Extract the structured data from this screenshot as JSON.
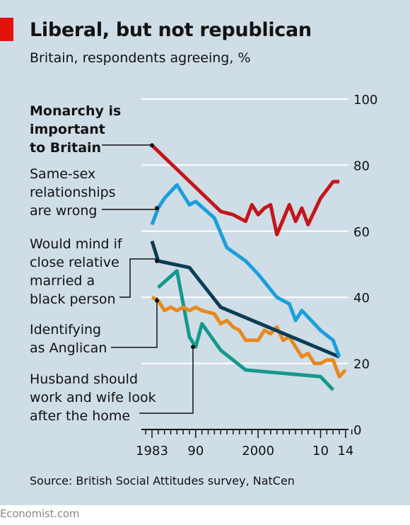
{
  "header": {
    "title": "Liberal, but not republican",
    "subtitle": "Britain, respondents agreeing, %"
  },
  "footer": {
    "source": "Source: British Social Attitudes survey, NatCen",
    "brand": "Economist.com"
  },
  "colors": {
    "background": "#cfdde6",
    "monarchy": "#c3161c",
    "same_sex": "#1a9fdb",
    "mixed_marriage": "#0b3d55",
    "anglican": "#e8891d",
    "gender_roles": "#13998e",
    "gridline": "#ffffff",
    "accent_tag": "#e3120b"
  },
  "chart_data": {
    "type": "line",
    "title": "Liberal, but not republican",
    "subtitle": "Britain, respondents agreeing, %",
    "xlabel": "",
    "ylabel": "",
    "xlim": [
      1979,
      2016
    ],
    "ylim": [
      0,
      100
    ],
    "yticks": [
      0,
      20,
      40,
      60,
      80,
      100
    ],
    "xtick_labels": [
      {
        "x": 1983,
        "label": "1983"
      },
      {
        "x": 1990,
        "label": "90"
      },
      {
        "x": 2000,
        "label": "2000"
      },
      {
        "x": 2010,
        "label": "10"
      },
      {
        "x": 2014,
        "label": "14"
      }
    ],
    "grid": true,
    "y_axis_side": "right",
    "series": [
      {
        "key": "monarchy",
        "name": "Monarchy is important to Britain",
        "label_lines": [
          "Monarchy is",
          "important",
          "to Britain"
        ],
        "bold": true,
        "points": [
          [
            1983,
            86
          ],
          [
            1994,
            66
          ],
          [
            1996,
            65
          ],
          [
            1998,
            63
          ],
          [
            1999,
            68
          ],
          [
            2000,
            65
          ],
          [
            2001,
            67
          ],
          [
            2002,
            68
          ],
          [
            2003,
            59
          ],
          [
            2005,
            68
          ],
          [
            2006,
            63
          ],
          [
            2007,
            67
          ],
          [
            2008,
            62
          ],
          [
            2010,
            70
          ],
          [
            2012,
            75
          ],
          [
            2013,
            75
          ]
        ]
      },
      {
        "key": "same_sex",
        "name": "Same-sex relationships are wrong",
        "label_lines": [
          "Same-sex",
          "relationships",
          "are wrong"
        ],
        "points": [
          [
            1983,
            62
          ],
          [
            1984,
            67
          ],
          [
            1985,
            70
          ],
          [
            1987,
            74
          ],
          [
            1989,
            68
          ],
          [
            1990,
            69
          ],
          [
            1993,
            64
          ],
          [
            1995,
            55
          ],
          [
            1998,
            51
          ],
          [
            2000,
            47
          ],
          [
            2003,
            40
          ],
          [
            2005,
            38
          ],
          [
            2006,
            33
          ],
          [
            2007,
            36
          ],
          [
            2010,
            30
          ],
          [
            2012,
            27
          ],
          [
            2013,
            22
          ]
        ]
      },
      {
        "key": "mixed_marriage",
        "name": "Would mind if close relative married a black person",
        "label_lines": [
          "Would mind if",
          "close relative",
          "married a",
          "black person"
        ],
        "points": [
          [
            1983,
            57
          ],
          [
            1984,
            51
          ],
          [
            1989,
            49
          ],
          [
            1994,
            37
          ],
          [
            2013,
            22
          ]
        ]
      },
      {
        "key": "anglican",
        "name": "Identifying as Anglican",
        "label_lines": [
          "Identifying",
          "as Anglican"
        ],
        "points": [
          [
            1983,
            40
          ],
          [
            1984,
            39
          ],
          [
            1985,
            36
          ],
          [
            1986,
            37
          ],
          [
            1987,
            36
          ],
          [
            1988,
            37
          ],
          [
            1989,
            36
          ],
          [
            1990,
            37
          ],
          [
            1991,
            36
          ],
          [
            1993,
            35
          ],
          [
            1994,
            32
          ],
          [
            1995,
            33
          ],
          [
            1996,
            31
          ],
          [
            1997,
            30
          ],
          [
            1998,
            27
          ],
          [
            2000,
            27
          ],
          [
            2001,
            30
          ],
          [
            2002,
            29
          ],
          [
            2003,
            31
          ],
          [
            2004,
            27
          ],
          [
            2005,
            28
          ],
          [
            2006,
            25
          ],
          [
            2007,
            22
          ],
          [
            2008,
            23
          ],
          [
            2009,
            20
          ],
          [
            2010,
            20
          ],
          [
            2011,
            21
          ],
          [
            2012,
            21
          ],
          [
            2013,
            16
          ],
          [
            2014,
            18
          ]
        ]
      },
      {
        "key": "gender_roles",
        "name": "Husband should work and wife look after the home",
        "label_lines": [
          "Husband should",
          "work and wife look",
          "after the home"
        ],
        "points": [
          [
            1984,
            43
          ],
          [
            1987,
            48
          ],
          [
            1989,
            28
          ],
          [
            1990,
            25
          ],
          [
            1991,
            32
          ],
          [
            1994,
            24
          ],
          [
            1998,
            18
          ],
          [
            2010,
            16
          ],
          [
            2012,
            12
          ]
        ]
      }
    ]
  }
}
